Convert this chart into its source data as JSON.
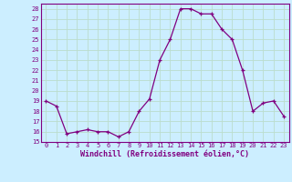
{
  "x": [
    0,
    1,
    2,
    3,
    4,
    5,
    6,
    7,
    8,
    9,
    10,
    11,
    12,
    13,
    14,
    15,
    16,
    17,
    18,
    19,
    20,
    21,
    22,
    23
  ],
  "y": [
    19.0,
    18.5,
    15.8,
    16.0,
    16.2,
    16.0,
    16.0,
    15.5,
    16.0,
    18.0,
    19.2,
    23.0,
    25.0,
    28.0,
    28.0,
    27.5,
    27.5,
    26.0,
    25.0,
    22.0,
    18.0,
    18.8,
    19.0,
    17.5
  ],
  "ylim": [
    15,
    28.5
  ],
  "xlim": [
    -0.5,
    23.5
  ],
  "yticks": [
    15,
    16,
    17,
    18,
    19,
    20,
    21,
    22,
    23,
    24,
    25,
    26,
    27,
    28
  ],
  "xticks": [
    0,
    1,
    2,
    3,
    4,
    5,
    6,
    7,
    8,
    9,
    10,
    11,
    12,
    13,
    14,
    15,
    16,
    17,
    18,
    19,
    20,
    21,
    22,
    23
  ],
  "xlabel": "Windchill (Refroidissement éolien,°C)",
  "line_color": "#800080",
  "marker": "+",
  "bg_color": "#cceeff",
  "grid_color": "#bbddcc",
  "tick_color": "#800080",
  "label_color": "#800080"
}
